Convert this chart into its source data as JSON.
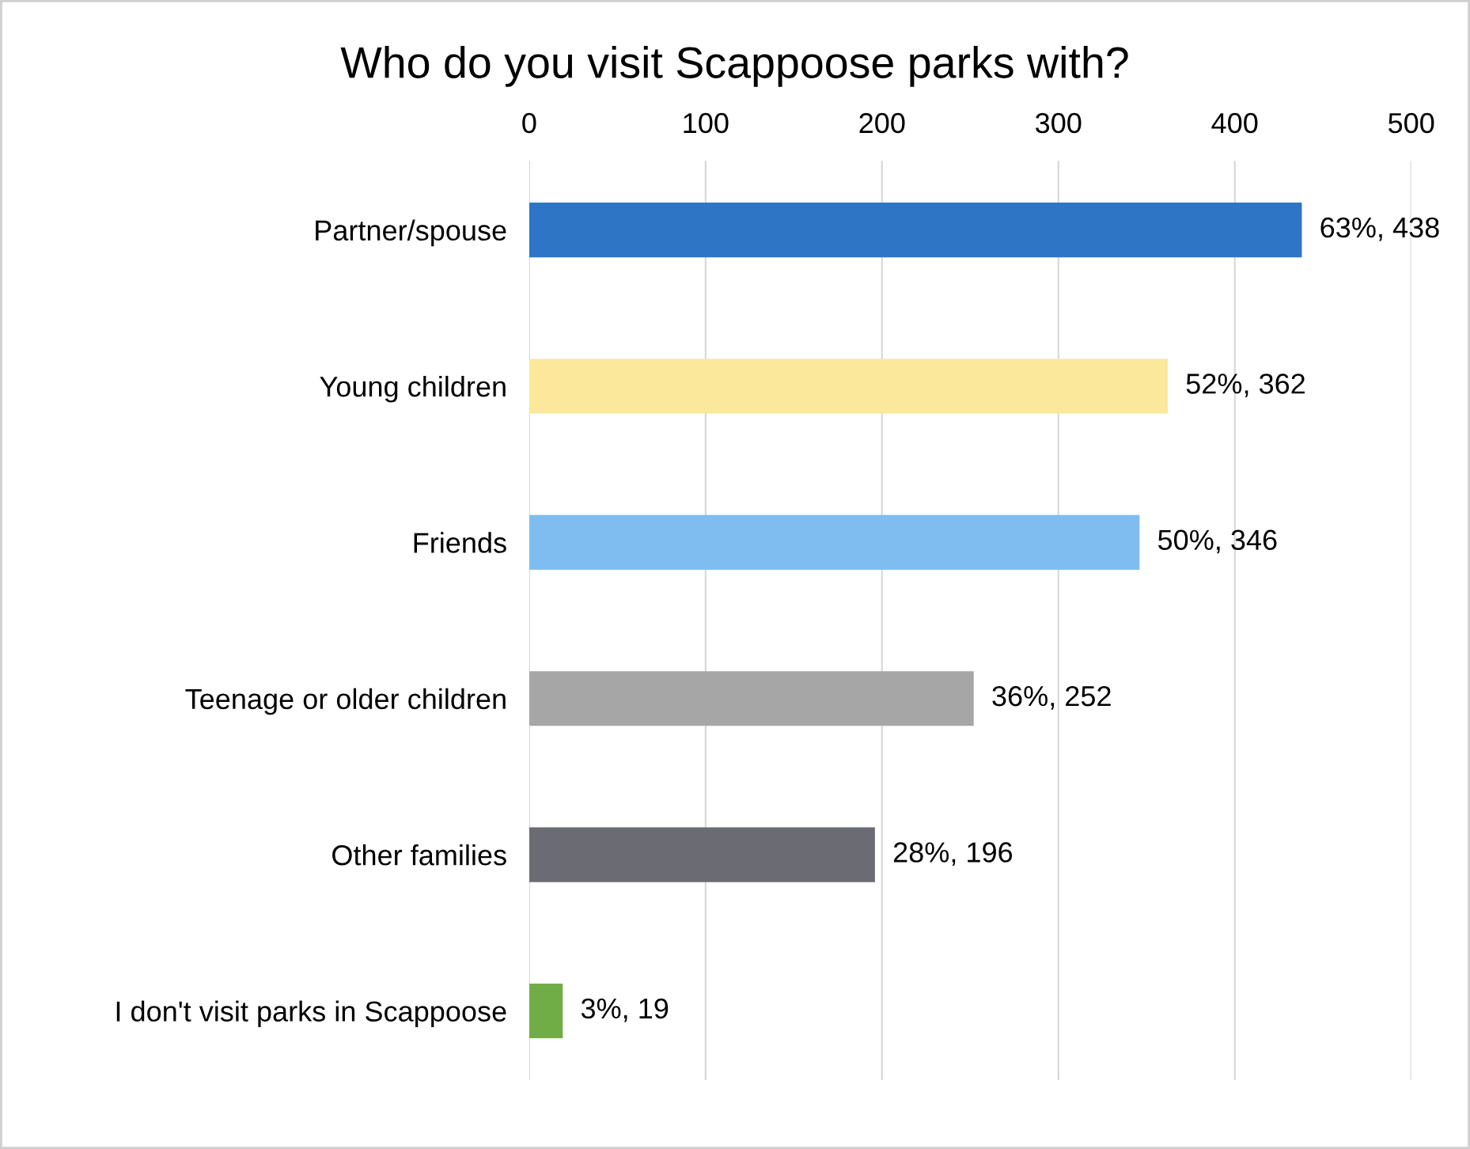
{
  "chart_data": {
    "type": "bar",
    "orientation": "horizontal",
    "title": "Who do you visit Scappoose parks with?",
    "categories": [
      "Partner/spouse",
      "Young children",
      "Friends",
      "Teenage or older children",
      "Other families",
      "I don't visit parks in Scappoose"
    ],
    "values": [
      438,
      362,
      346,
      252,
      196,
      19
    ],
    "colors": [
      "#2e75c6",
      "#fbe89a",
      "#7fbdf0",
      "#a6a6a6",
      "#6b6b73",
      "#70ad47"
    ],
    "value_labels": [
      "63%, 438",
      "52%, 362",
      "50%, 346",
      "36%, 252",
      "28%, 196",
      "3%, 19"
    ],
    "xlim": [
      0,
      500
    ],
    "xticks": [
      0,
      100,
      200,
      300,
      400,
      500
    ],
    "grid": "x"
  }
}
